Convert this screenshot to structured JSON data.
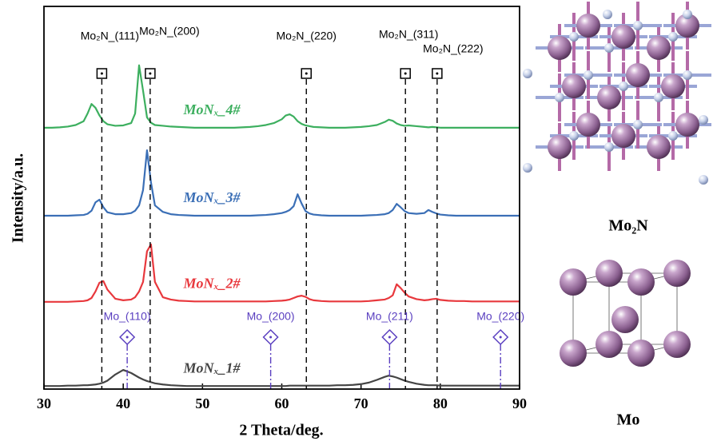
{
  "chart_data": {
    "type": "line",
    "xlabel": "2 Theta/deg.",
    "ylabel": "Intensity/a.u.",
    "xlim": [
      30,
      90
    ],
    "xticks": [
      30,
      40,
      50,
      60,
      70,
      80,
      90
    ],
    "ylim": [
      0,
      100
    ],
    "x": [
      30,
      31,
      32,
      33,
      34,
      35,
      35.5,
      36,
      36.5,
      37,
      37.5,
      38,
      39,
      40,
      41,
      41.5,
      42,
      42.5,
      43,
      43.5,
      44,
      45,
      46,
      47,
      48,
      49,
      50,
      51,
      52,
      53,
      54,
      55,
      56,
      57,
      58,
      59,
      60,
      60.5,
      61,
      61.5,
      62,
      62.5,
      63,
      63.5,
      64,
      65,
      66,
      67,
      68,
      69,
      70,
      71,
      72,
      73,
      73.5,
      74,
      74.5,
      75,
      75.5,
      76,
      77,
      78,
      78.5,
      79,
      79.5,
      80,
      81,
      82,
      83,
      84,
      85,
      86,
      87,
      88,
      89,
      90
    ],
    "series": [
      {
        "name": "MoNₓ_1#",
        "color": "#454545",
        "values": [
          0.8,
          0.8,
          0.8,
          0.9,
          0.9,
          1,
          1,
          1.1,
          1.2,
          1.4,
          1.7,
          2.2,
          3.8,
          5,
          4.2,
          3.6,
          3,
          2.5,
          2.1,
          1.8,
          1.5,
          1.2,
          1,
          0.9,
          0.8,
          0.8,
          0.8,
          0.8,
          0.8,
          0.8,
          0.8,
          0.8,
          0.8,
          0.8,
          0.8,
          0.8,
          0.8,
          0.8,
          0.9,
          0.9,
          0.9,
          0.9,
          0.9,
          0.9,
          0.9,
          0.9,
          0.9,
          1,
          1,
          1.1,
          1.3,
          1.7,
          2.4,
          3.2,
          3.5,
          3.3,
          3,
          2.6,
          2.2,
          1.9,
          1.4,
          1.1,
          1,
          1,
          1,
          0.9,
          0.9,
          0.9,
          0.9,
          0.9,
          0.9,
          0.9,
          0.9,
          0.9,
          0.9,
          0.9
        ]
      },
      {
        "name": "MoNₓ_2#",
        "color": "#e8383d",
        "values": [
          22.8,
          22.8,
          22.8,
          22.8,
          22.9,
          23,
          23.2,
          23.8,
          25.5,
          27.8,
          28.2,
          26,
          23.6,
          23.2,
          23.4,
          24,
          25.5,
          28,
          36,
          37.8,
          28,
          24,
          23.4,
          23.1,
          23,
          22.9,
          22.9,
          22.9,
          22.9,
          22.9,
          22.9,
          22.9,
          22.9,
          22.9,
          22.9,
          23,
          23.1,
          23.2,
          23.4,
          23.8,
          24.2,
          24.4,
          24.1,
          23.5,
          23.2,
          23,
          22.9,
          22.9,
          22.9,
          22.9,
          22.9,
          23,
          23.2,
          23.4,
          23.8,
          24.5,
          27.4,
          26.4,
          25.2,
          24.2,
          23.5,
          23.2,
          23.3,
          23.5,
          23.6,
          23.3,
          23.1,
          23,
          23,
          22.9,
          22.9,
          22.9,
          22.9,
          22.9,
          22.9,
          22.9
        ]
      },
      {
        "name": "MoNₓ_3#",
        "color": "#3b6fb6",
        "values": [
          45.3,
          45.3,
          45.3,
          45.3,
          45.4,
          45.5,
          45.8,
          46.6,
          48.8,
          49.5,
          47.5,
          46.2,
          45.7,
          45.7,
          46,
          46.6,
          48,
          52,
          62.4,
          54,
          48,
          46.3,
          45.7,
          45.5,
          45.4,
          45.3,
          45.3,
          45.3,
          45.3,
          45.3,
          45.3,
          45.3,
          45.3,
          45.4,
          45.5,
          45.7,
          46,
          46.3,
          46.8,
          47.8,
          50.9,
          48.5,
          46.5,
          45.9,
          45.6,
          45.4,
          45.3,
          45.3,
          45.3,
          45.3,
          45.3,
          45.4,
          45.5,
          45.7,
          46,
          46.8,
          48.4,
          47.5,
          46.5,
          46,
          45.8,
          46,
          46.8,
          46.3,
          45.9,
          45.6,
          45.4,
          45.3,
          45.3,
          45.3,
          45.3,
          45.3,
          45.3,
          45.3,
          45.3,
          45.3
        ]
      },
      {
        "name": "MoNₓ_4#",
        "color": "#3daf5f",
        "values": [
          68.3,
          68.3,
          68.4,
          68.6,
          69,
          70,
          72,
          74.5,
          73.5,
          71.5,
          70,
          69.2,
          68.8,
          68.9,
          69.5,
          72,
          84.6,
          78,
          71,
          69.6,
          69,
          68.8,
          68.6,
          68.5,
          68.4,
          68.3,
          68.3,
          68.3,
          68.3,
          68.3,
          68.3,
          68.4,
          68.5,
          68.7,
          69,
          69.5,
          70.5,
          71.5,
          71.8,
          71.2,
          70,
          69.3,
          68.9,
          68.7,
          68.5,
          68.4,
          68.3,
          68.3,
          68.3,
          68.4,
          68.5,
          68.7,
          69,
          69.8,
          70.4,
          70.1,
          69.4,
          69,
          68.8,
          68.9,
          68.7,
          68.5,
          68.4,
          68.5,
          68.4,
          68.3,
          68.3,
          68.3,
          68.3,
          68.3,
          68.3,
          68.3,
          68.3,
          68.3,
          68.3,
          68.3
        ]
      }
    ],
    "mo2n_peaks": [
      {
        "label": "Mo₂N_(111)",
        "x": 37.3
      },
      {
        "label": "Mo₂N_(200)",
        "x": 43.4
      },
      {
        "label": "Mo₂N_(220)",
        "x": 63.1
      },
      {
        "label": "Mo₂N_(311)",
        "x": 75.6
      },
      {
        "label": "Mo₂N_(222)",
        "x": 79.6
      }
    ],
    "mo_peaks": [
      {
        "label": "Mo_(110)",
        "x": 40.5
      },
      {
        "label": "Mo_(200)",
        "x": 58.6
      },
      {
        "label": "Mo_(211)",
        "x": 73.6
      },
      {
        "label": "Mo_(220)",
        "x": 87.6
      }
    ]
  },
  "structures": [
    "Mo₂N",
    "Mo"
  ]
}
